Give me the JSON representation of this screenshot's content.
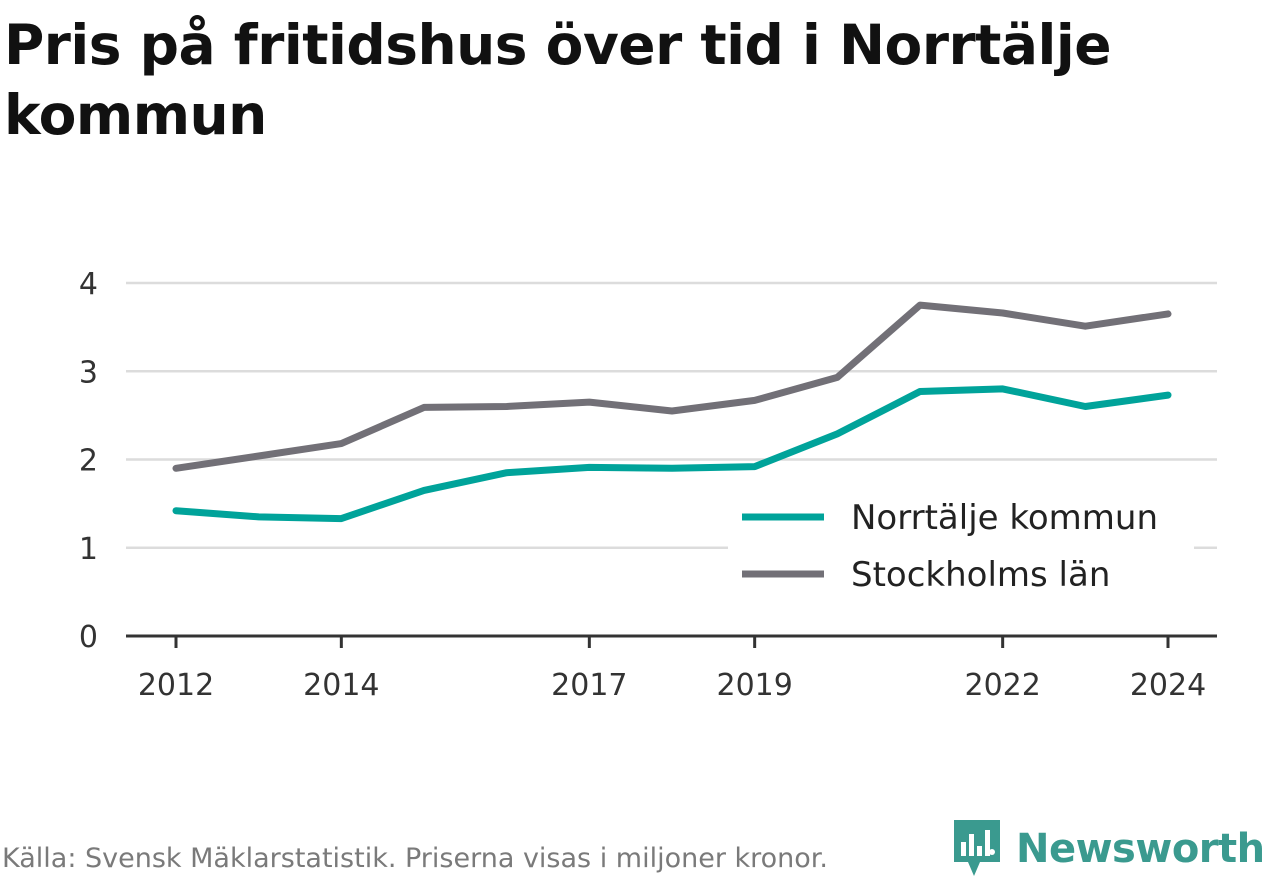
{
  "title": "Pris på fritidshus över tid i Norrtälje kommun",
  "footer": "Källa: Svensk Mäklarstatistik. Priserna visas i miljoner kronor.",
  "brand": {
    "name": "Newsworthy",
    "icon": "newsworthy-logo-icon",
    "color": "#3a9a8f"
  },
  "chart_data": {
    "type": "line",
    "x": [
      2012,
      2013,
      2014,
      2015,
      2016,
      2017,
      2018,
      2019,
      2020,
      2021,
      2022,
      2023,
      2024
    ],
    "x_tick_labels": [
      "2012",
      "2014",
      "2017",
      "2019",
      "2022",
      "2024"
    ],
    "y_tick_labels": [
      "0",
      "1",
      "2",
      "3",
      "4"
    ],
    "ylim": [
      0,
      4
    ],
    "grid": true,
    "legend_position": "bottom-right",
    "series": [
      {
        "name": "Norrtälje kommun",
        "color": "#00a39a",
        "values": [
          1.42,
          1.35,
          1.33,
          1.65,
          1.85,
          1.91,
          1.9,
          1.92,
          2.29,
          2.77,
          2.8,
          2.6,
          2.73
        ]
      },
      {
        "name": "Stockholms län",
        "color": "#727077",
        "values": [
          1.9,
          2.04,
          2.18,
          2.59,
          2.6,
          2.65,
          2.55,
          2.67,
          2.93,
          3.75,
          3.66,
          3.51,
          3.65
        ]
      }
    ]
  }
}
